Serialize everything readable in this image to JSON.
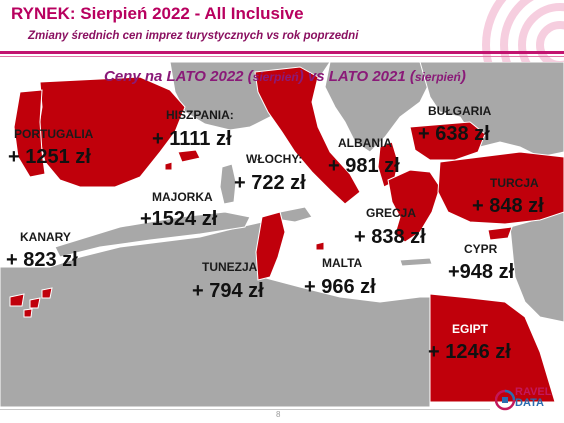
{
  "header": {
    "title": "RYNEK: Sierpień 2022 - All Inclusive",
    "subtitle": "Zmiany średnich cen imprez turystycznych vs rok poprzedni"
  },
  "map_heading": {
    "part1": "Ceny na LATO 2022 (",
    "part1_small": "sierpień",
    "part2": ") vs  LATO 2021 (",
    "part2_small": "sierpień",
    "part3": ")"
  },
  "destinations": [
    {
      "country": "PORTUGALIA",
      "price": "+ 1251 zł"
    },
    {
      "country": "HISZPANIA:",
      "price": "+ 1111 zł"
    },
    {
      "country": "WŁOCHY:",
      "price": "+ 722 zł"
    },
    {
      "country": "ALBANIA",
      "price": "+ 981 zł"
    },
    {
      "country": "BUŁGARIA",
      "price": "+ 638 zł"
    },
    {
      "country": "MAJORKA",
      "price": "+1524 zł"
    },
    {
      "country": "TURCJA",
      "price": "+ 848 zł"
    },
    {
      "country": "GRECJA",
      "price": "+ 838 zł"
    },
    {
      "country": "KANARY",
      "price": "+ 823 zł"
    },
    {
      "country": "CYPR",
      "price": "+948 zł"
    },
    {
      "country": "TUNEZJA",
      "price": "+ 794 zł"
    },
    {
      "country": "MALTA",
      "price": "+ 966 zł"
    },
    {
      "country": "EGIPT",
      "price": "+ 1246 zł"
    }
  ],
  "footer": {
    "page_number": "8"
  },
  "logo": {
    "line1": "RAVEL",
    "line2": "DATA"
  },
  "colors": {
    "brand_magenta": "#c21470",
    "highlight_red": "#c0000b",
    "land_gray": "#a8a8a8",
    "sea": "#ffffff"
  }
}
